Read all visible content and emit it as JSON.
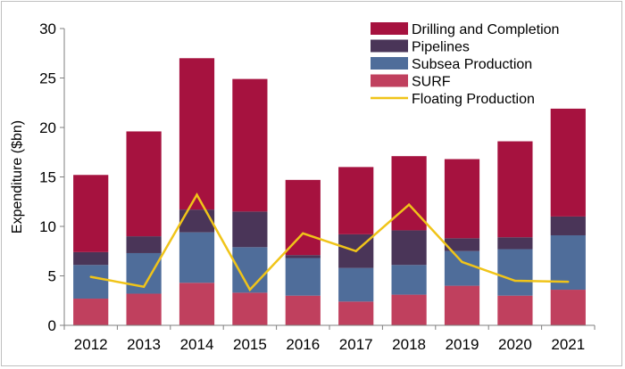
{
  "chart_data": {
    "type": "bar",
    "stacked": true,
    "title": "",
    "xlabel": "",
    "ylabel": "Expenditure ($bn)",
    "ylim": [
      0,
      30
    ],
    "yticks": [
      0,
      5,
      10,
      15,
      20,
      25,
      30
    ],
    "grid": false,
    "legend_position": "top-right",
    "categories": [
      "2012",
      "2013",
      "2014",
      "2015",
      "2016",
      "2017",
      "2018",
      "2019",
      "2020",
      "2021"
    ],
    "series": [
      {
        "name": "SURF",
        "kind": "bar",
        "color": "#c0405e",
        "values": [
          2.7,
          3.2,
          4.3,
          3.3,
          3.0,
          2.4,
          3.1,
          4.0,
          3.0,
          3.6
        ]
      },
      {
        "name": "Subsea Production",
        "kind": "bar",
        "color": "#4f6d9a",
        "values": [
          3.4,
          4.1,
          5.1,
          4.6,
          3.8,
          3.4,
          3.0,
          3.5,
          4.7,
          5.5
        ]
      },
      {
        "name": "Pipelines",
        "kind": "bar",
        "color": "#4a3558",
        "values": [
          1.3,
          1.7,
          2.3,
          3.6,
          0.3,
          3.4,
          3.5,
          1.3,
          1.2,
          1.9
        ]
      },
      {
        "name": "Drilling and Completion",
        "kind": "bar",
        "color": "#a6123f",
        "values": [
          7.8,
          10.6,
          15.3,
          13.4,
          7.6,
          6.8,
          7.5,
          8.0,
          9.7,
          10.9
        ]
      },
      {
        "name": "Floating Production",
        "kind": "line",
        "color": "#f0c419",
        "values": [
          4.9,
          3.9,
          13.2,
          3.6,
          9.3,
          7.5,
          12.2,
          6.4,
          4.5,
          4.4
        ]
      }
    ],
    "legend_order": [
      "Drilling and Completion",
      "Pipelines",
      "Subsea Production",
      "SURF",
      "Floating Production"
    ]
  }
}
